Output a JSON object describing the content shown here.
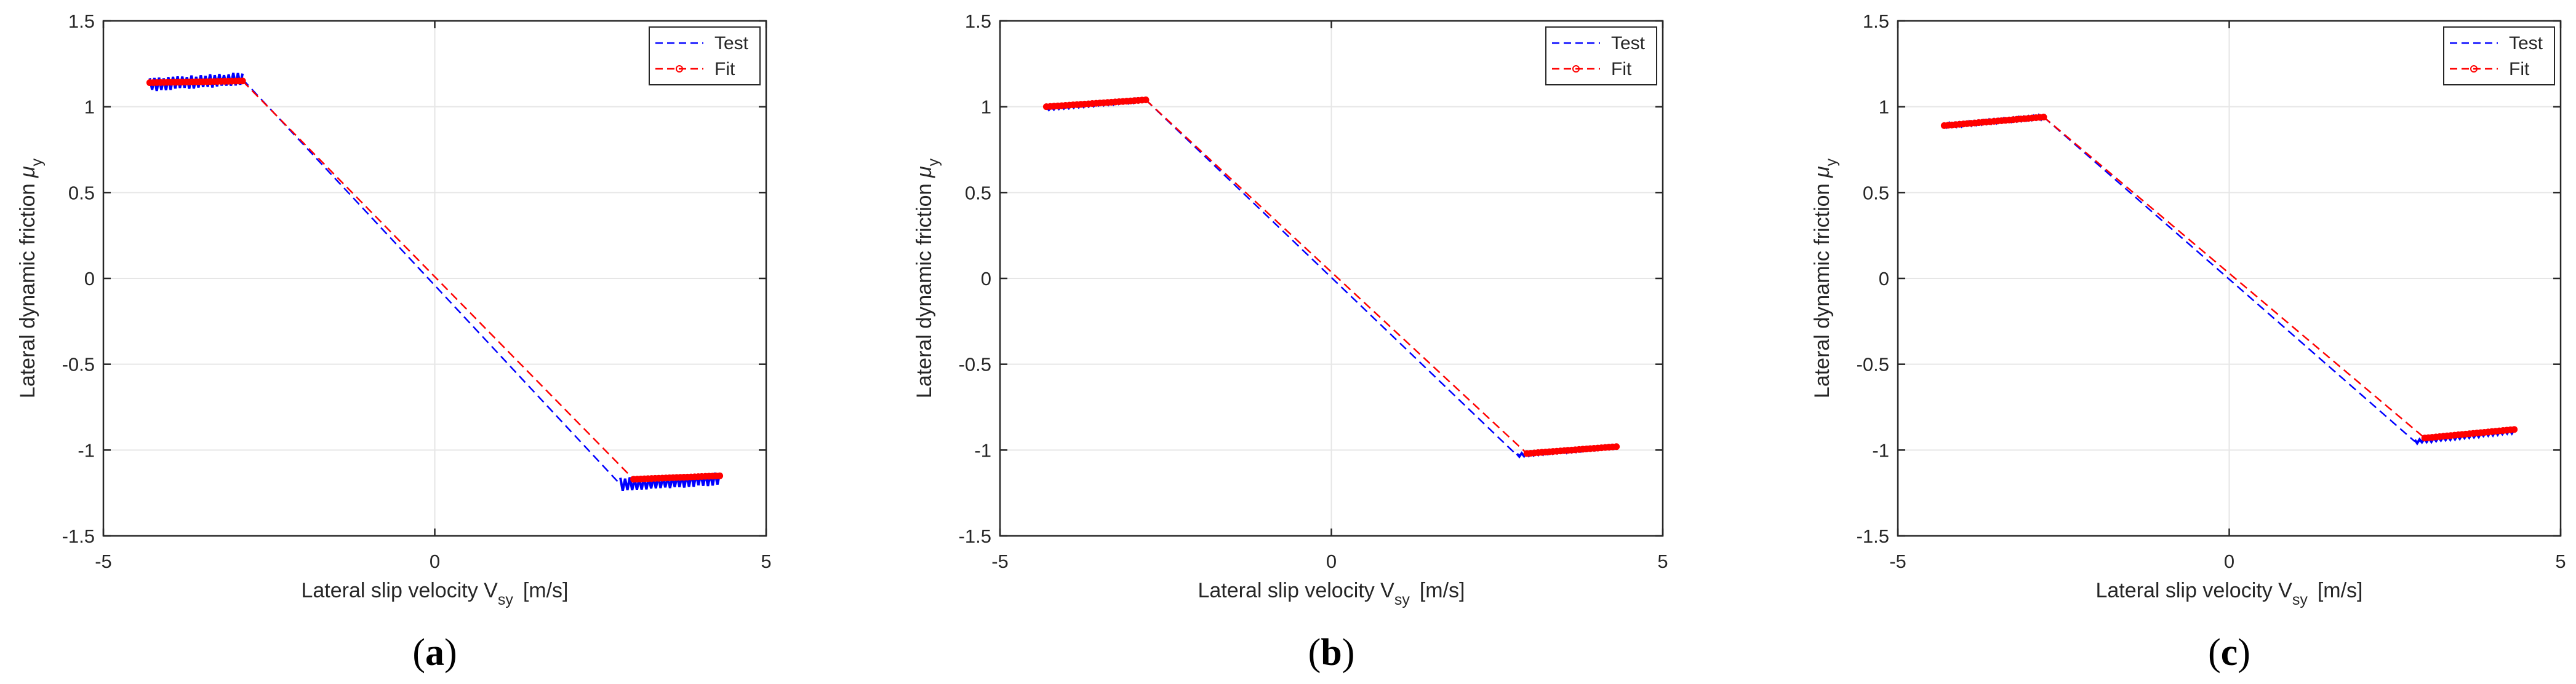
{
  "colors": {
    "test": "#0000ff",
    "fit": "#ff0000",
    "axis": "#262626",
    "grid": "#e6e6e6",
    "background": "#ffffff"
  },
  "chart_data": [
    {
      "type": "line",
      "panel_label": "a",
      "caption": {
        "open": "(",
        "letter": "a",
        "close": ")"
      },
      "title": "",
      "xlabel": {
        "main": "Lateral slip velocity V",
        "sub": "sy",
        "unit": "[m/s]"
      },
      "ylabel": {
        "main": "Lateral dynamic friction ",
        "symbol": "μ",
        "sub": "y"
      },
      "xlim": [
        -5,
        5
      ],
      "ylim": [
        -1.5,
        1.5
      ],
      "xticks": [
        -5,
        0,
        5
      ],
      "xtick_labels": [
        "-5",
        "0",
        "5"
      ],
      "yticks": [
        -1.5,
        -1,
        -0.5,
        0,
        0.5,
        1,
        1.5
      ],
      "ytick_labels": [
        "-1.5",
        "-1",
        "-0.5",
        "0",
        "0.5",
        "1",
        "1.5"
      ],
      "grid": true,
      "legend": {
        "position": "top-right",
        "entries": [
          "Test",
          "Fit"
        ]
      },
      "series": [
        {
          "name": "Test",
          "style": "dashed",
          "color": "#0000ff",
          "x": [
            -4.3,
            -2.9,
            2.8,
            4.3
          ],
          "y": [
            1.13,
            1.16,
            -1.2,
            -1.17
          ],
          "noise": 0.04
        },
        {
          "name": "Fit",
          "style": "dashed-dots",
          "color": "#ff0000",
          "x": [
            -4.3,
            -2.9,
            3.0,
            4.3
          ],
          "y": [
            1.14,
            1.15,
            -1.17,
            -1.15
          ]
        }
      ]
    },
    {
      "type": "line",
      "panel_label": "b",
      "caption": {
        "open": "(",
        "letter": "b",
        "close": ")"
      },
      "title": "",
      "xlabel": {
        "main": "Lateral slip velocity V",
        "sub": "sy",
        "unit": "[m/s]"
      },
      "ylabel": {
        "main": "Lateral dynamic friction ",
        "symbol": "μ",
        "sub": "y"
      },
      "xlim": [
        -5,
        5
      ],
      "ylim": [
        -1.5,
        1.5
      ],
      "xticks": [
        -5,
        0,
        5
      ],
      "xtick_labels": [
        "-5",
        "0",
        "5"
      ],
      "yticks": [
        -1.5,
        -1,
        -0.5,
        0,
        0.5,
        1,
        1.5
      ],
      "ytick_labels": [
        "-1.5",
        "-1",
        "-0.5",
        "0",
        "0.5",
        "1",
        "1.5"
      ],
      "grid": true,
      "legend": {
        "position": "top-right",
        "entries": [
          "Test",
          "Fit"
        ]
      },
      "series": [
        {
          "name": "Test",
          "style": "dashed",
          "color": "#0000ff",
          "x": [
            -4.3,
            -2.8,
            2.8,
            4.3
          ],
          "y": [
            0.99,
            1.04,
            -1.03,
            -0.98
          ],
          "noise": 0.01
        },
        {
          "name": "Fit",
          "style": "dashed-dots",
          "color": "#ff0000",
          "x": [
            -4.3,
            -2.8,
            2.95,
            4.3
          ],
          "y": [
            1.0,
            1.04,
            -1.02,
            -0.98
          ]
        }
      ]
    },
    {
      "type": "line",
      "panel_label": "c",
      "caption": {
        "open": "(",
        "letter": "c",
        "close": ")"
      },
      "title": "",
      "xlabel": {
        "main": "Lateral slip velocity V",
        "sub": "sy",
        "unit": "[m/s]"
      },
      "ylabel": {
        "main": "Lateral dynamic friction ",
        "symbol": "μ",
        "sub": "y"
      },
      "xlim": [
        -5,
        5
      ],
      "ylim": [
        -1.5,
        1.5
      ],
      "xticks": [
        -5,
        0,
        5
      ],
      "xtick_labels": [
        "-5",
        "0",
        "5"
      ],
      "yticks": [
        -1.5,
        -1,
        -0.5,
        0,
        0.5,
        1,
        1.5
      ],
      "ytick_labels": [
        "-1.5",
        "-1",
        "-0.5",
        "0",
        "0.5",
        "1",
        "1.5"
      ],
      "grid": true,
      "legend": {
        "position": "top-right",
        "entries": [
          "Test",
          "Fit"
        ]
      },
      "series": [
        {
          "name": "Test",
          "style": "dashed",
          "color": "#0000ff",
          "x": [
            -4.3,
            -2.8,
            2.8,
            4.3
          ],
          "y": [
            0.89,
            0.94,
            -0.95,
            -0.89
          ],
          "noise": 0.012
        },
        {
          "name": "Fit",
          "style": "dashed-dots",
          "color": "#ff0000",
          "x": [
            -4.3,
            -2.8,
            2.95,
            4.3
          ],
          "y": [
            0.89,
            0.94,
            -0.93,
            -0.88
          ]
        }
      ]
    }
  ]
}
